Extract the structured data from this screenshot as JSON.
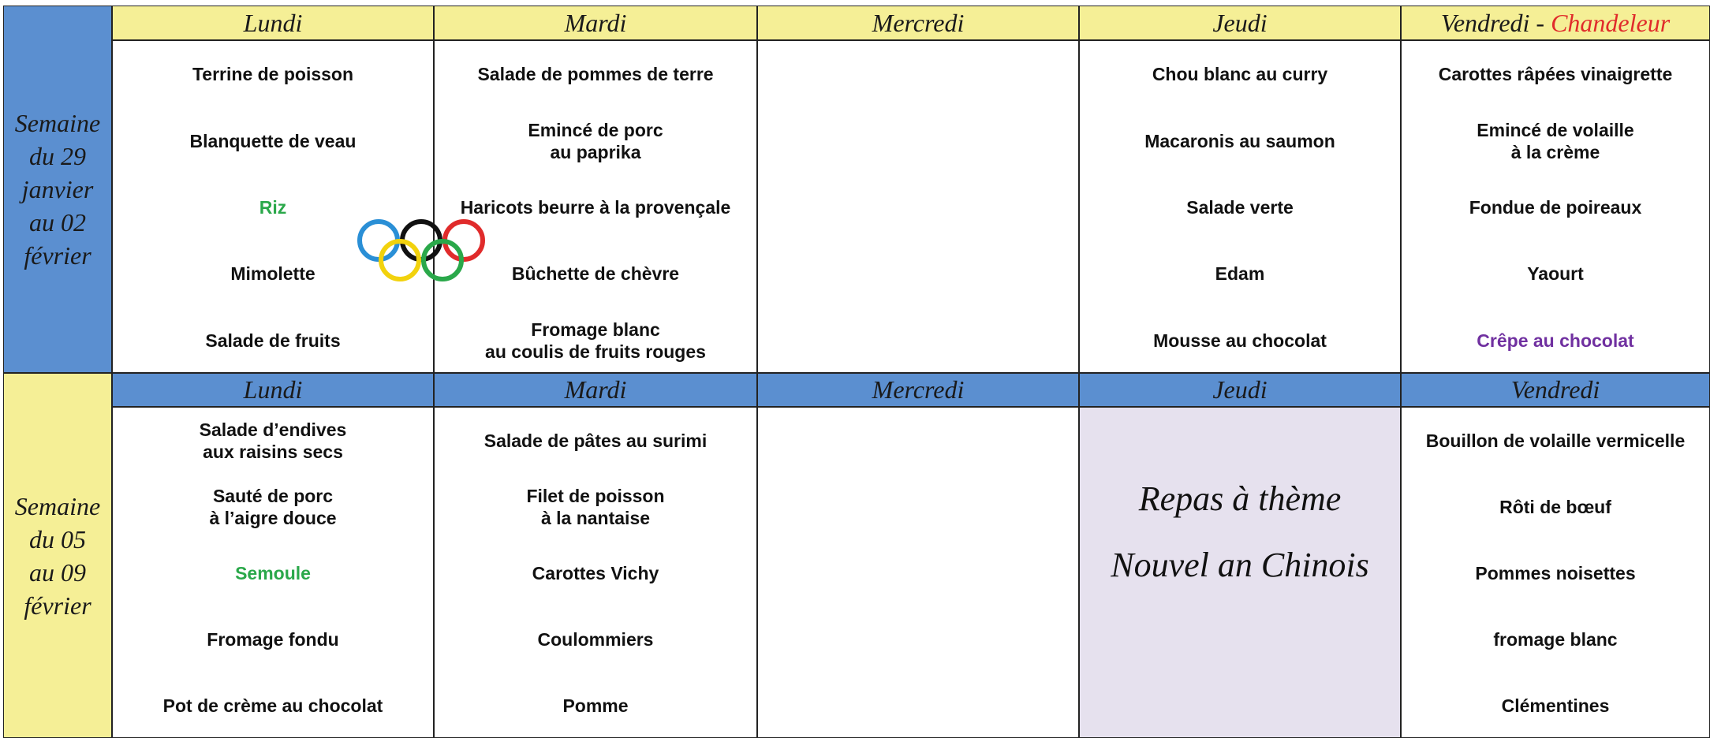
{
  "weeks": [
    {
      "label": "Semaine\ndu 29\njanvier\nau 02\nfévrier",
      "days": [
        {
          "name": "Lundi",
          "items": [
            "Terrine de poisson",
            "Blanquette de veau",
            {
              "text": "Riz",
              "color": "#2aa84a"
            },
            "Mimolette",
            "Salade de fruits"
          ]
        },
        {
          "name": "Mardi",
          "items": [
            "Salade de pommes de terre",
            "Emincé de porc\nau paprika",
            "Haricots beurre à la provençale",
            "Bûchette de chèvre",
            "Fromage blanc\nau coulis de fruits rouges"
          ]
        },
        {
          "name": "Mercredi",
          "items": []
        },
        {
          "name": "Jeudi",
          "items": [
            "Chou blanc au curry",
            "Macaronis au saumon",
            "Salade verte",
            "Edam",
            "Mousse au chocolat"
          ]
        },
        {
          "name": "Vendredi - ",
          "event": "Chandeleur",
          "items": [
            "Carottes râpées vinaigrette",
            "Emincé de volaille\nà la crème",
            "Fondue de poireaux",
            "Yaourt",
            {
              "text": "Crêpe au chocolat",
              "color": "#7030a0"
            }
          ]
        }
      ]
    },
    {
      "label": "Semaine\ndu 05\nau 09\nfévrier",
      "days": [
        {
          "name": "Lundi",
          "items": [
            "Salade d’endives\naux raisins secs",
            "Sauté de porc\nà l’aigre douce",
            {
              "text": "Semoule",
              "color": "#2aa84a"
            },
            "Fromage fondu",
            "Pot de crème au chocolat"
          ]
        },
        {
          "name": "Mardi",
          "items": [
            "Salade de pâtes au surimi",
            "Filet de poisson\nà la nantaise",
            "Carottes Vichy",
            "Coulommiers",
            "Pomme"
          ]
        },
        {
          "name": "Mercredi",
          "items": []
        },
        {
          "name": "Jeudi",
          "theme": [
            "Repas à thème",
            "Nouvel an Chinois"
          ],
          "items": []
        },
        {
          "name": "Vendredi",
          "items": [
            "Bouillon de volaille vermicelle",
            "Rôti de bœuf",
            "Pommes noisettes",
            "fromage blanc",
            "Clémentines"
          ]
        }
      ]
    }
  ]
}
